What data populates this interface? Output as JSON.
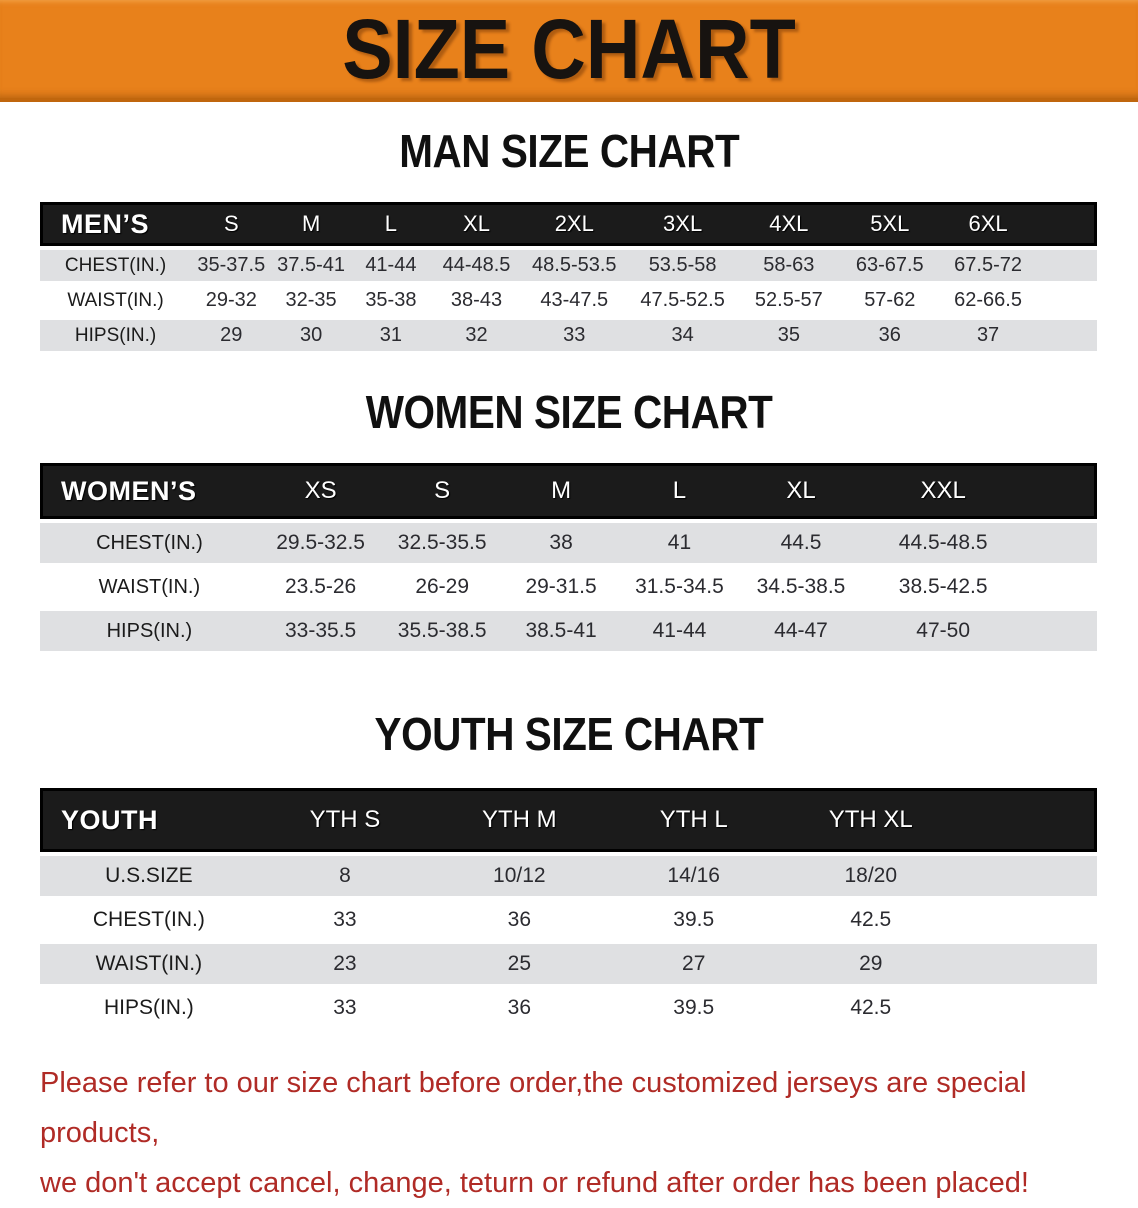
{
  "banner": {
    "title": "SIZE CHART"
  },
  "colors": {
    "banner_orange": "#E8811B",
    "banner_edge": "#C0660D",
    "table_header_black": "#1B1B1B",
    "row_gray": "#E0E1E3",
    "disclaimer_red": "#B02B26"
  },
  "sections": [
    {
      "id": "men",
      "title": "MAN SIZE CHART",
      "table": {
        "header_label": "MEN’S",
        "sizes": [
          "S",
          "M",
          "L",
          "XL",
          "2XL",
          "3XL",
          "4XL",
          "5XL",
          "6XL"
        ],
        "rows": [
          {
            "label": "CHEST(IN.)",
            "values": [
              "35-37.5",
              "37.5-41",
              "41-44",
              "44-48.5",
              "48.5-53.5",
              "53.5-58",
              "58-63",
              "63-67.5",
              "67.5-72"
            ]
          },
          {
            "label": "WAIST(IN.)",
            "values": [
              "29-32",
              "32-35",
              "35-38",
              "38-43",
              "43-47.5",
              "47.5-52.5",
              "52.5-57",
              "57-62",
              "62-66.5"
            ]
          },
          {
            "label": "HIPS(IN.)",
            "values": [
              "29",
              "30",
              "31",
              "32",
              "33",
              "34",
              "35",
              "36",
              "37"
            ]
          }
        ]
      }
    },
    {
      "id": "women",
      "title": "WOMEN SIZE CHART",
      "table": {
        "header_label": "WOMEN’S",
        "sizes": [
          "XS",
          "S",
          "M",
          "L",
          "XL",
          "XXL"
        ],
        "rows": [
          {
            "label": "CHEST(IN.)",
            "values": [
              "29.5-32.5",
              "32.5-35.5",
              "38",
              "41",
              "44.5",
              "44.5-48.5"
            ]
          },
          {
            "label": "WAIST(IN.)",
            "values": [
              "23.5-26",
              "26-29",
              "29-31.5",
              "31.5-34.5",
              "34.5-38.5",
              "38.5-42.5"
            ]
          },
          {
            "label": "HIPS(IN.)",
            "values": [
              "33-35.5",
              "35.5-38.5",
              "38.5-41",
              "41-44",
              "44-47",
              "47-50"
            ]
          }
        ]
      }
    },
    {
      "id": "youth",
      "title": "YOUTH SIZE CHART",
      "table": {
        "header_label": "YOUTH",
        "sizes": [
          "YTH S",
          "YTH M",
          "YTH L",
          "YTH XL"
        ],
        "rows": [
          {
            "label": "U.S.SIZE",
            "values": [
              "8",
              "10/12",
              "14/16",
              "18/20"
            ]
          },
          {
            "label": "CHEST(IN.)",
            "values": [
              "33",
              "36",
              "39.5",
              "42.5"
            ]
          },
          {
            "label": "WAIST(IN.)",
            "values": [
              "23",
              "25",
              "27",
              "29"
            ]
          },
          {
            "label": "HIPS(IN.)",
            "values": [
              "33",
              "36",
              "39.5",
              "42.5"
            ]
          }
        ]
      }
    }
  ],
  "disclaimer": {
    "line1": "Please refer to our size chart before order,the customized jerseys are special products,",
    "line2": "we don't accept cancel, change, teturn or refund after order has been placed!"
  }
}
